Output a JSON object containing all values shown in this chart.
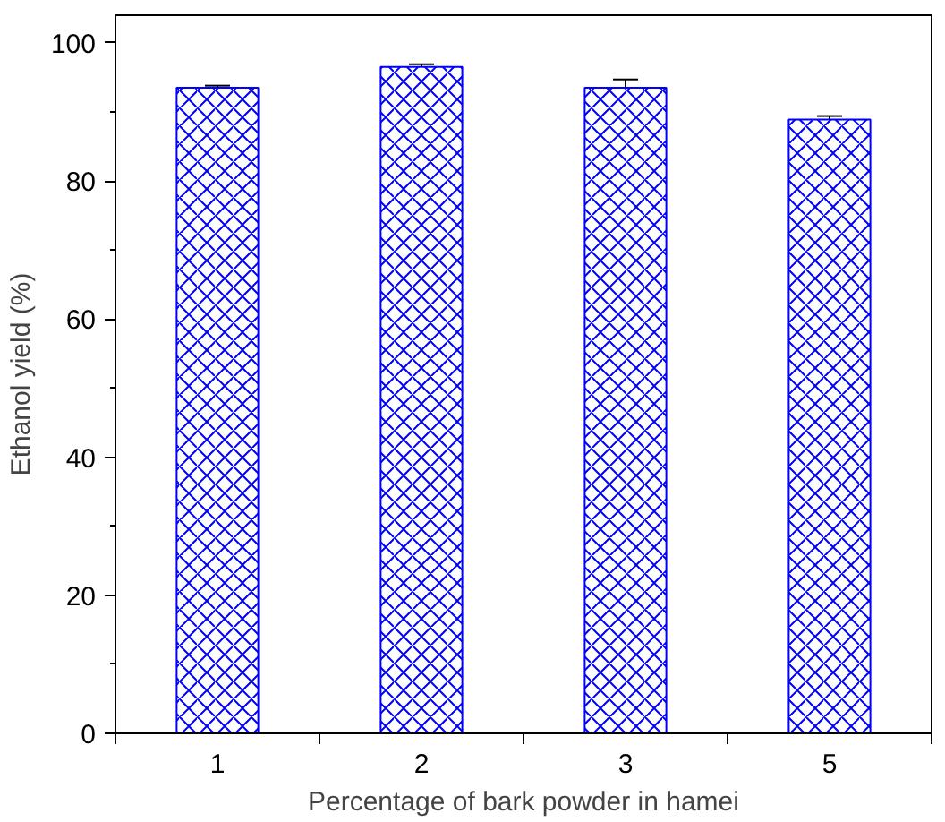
{
  "chart_data": {
    "type": "bar",
    "xlabel": "Percentage of bark powder in hamei",
    "ylabel": "Ethanol yield (%)",
    "categories": [
      "1",
      "2",
      "3",
      "5"
    ],
    "values": [
      93.5,
      96.5,
      93.5,
      88.9
    ],
    "errors": [
      0.3,
      0.4,
      1.2,
      0.5
    ],
    "color": "#0000ff",
    "ylim": [
      0,
      104
    ],
    "yticks": [
      0,
      20,
      40,
      60,
      80,
      100
    ],
    "grid": false
  }
}
